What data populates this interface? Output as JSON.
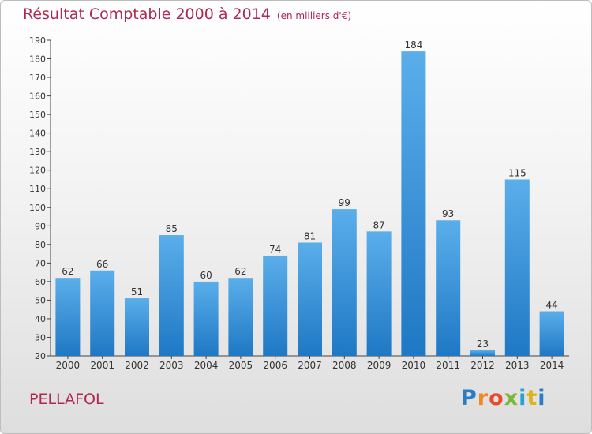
{
  "header": {
    "title": "Résultat Comptable 2000 à 2014",
    "subtitle": "(en milliers d'€)"
  },
  "footer": {
    "commune": "PELLAFOL",
    "logo": "Proxiti"
  },
  "colors": {
    "title": "#b0284f",
    "bar_top": "#5aaeea",
    "bar_bottom": "#1f78c4",
    "axis": "#444444",
    "logo": [
      "#2c7cc4",
      "#f08a1c",
      "#e84a2a",
      "#7bb83a",
      "#2c9fd8",
      "#e0b21a",
      "#2c7cc4"
    ]
  },
  "chart_data": {
    "type": "bar",
    "title": "Résultat Comptable 2000 à 2014",
    "subtitle": "(en milliers d'€)",
    "categories": [
      "2000",
      "2001",
      "2002",
      "2003",
      "2004",
      "2005",
      "2006",
      "2007",
      "2008",
      "2009",
      "2010",
      "2011",
      "2012",
      "2013",
      "2014"
    ],
    "values": [
      62,
      66,
      51,
      85,
      60,
      62,
      74,
      81,
      99,
      87,
      184,
      93,
      23,
      115,
      44
    ],
    "ylim": [
      20,
      190
    ],
    "ytick_step": 10,
    "grid": false,
    "legend": "none"
  }
}
